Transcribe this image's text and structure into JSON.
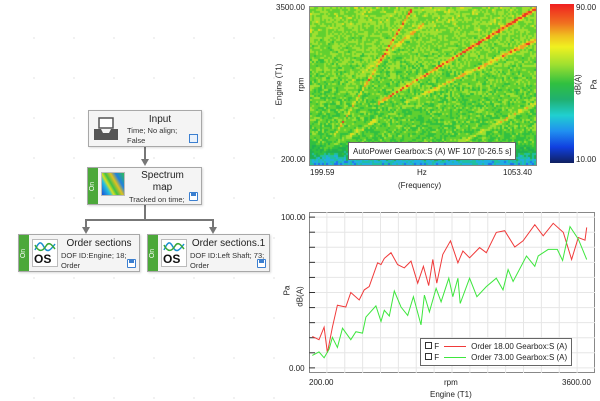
{
  "workflow": {
    "nodes": [
      {
        "title": "Input",
        "desc": [
          "Time; No align;",
          "False"
        ],
        "icon": "inbox-tray-icon"
      },
      {
        "title": "Spectrum map",
        "title_lines": [
          "Spectrum",
          "map"
        ],
        "desc": [
          "Tracked on time;"
        ],
        "status": "On",
        "icon": "spectrum-map-thumbnail-icon"
      },
      {
        "title": "Order sections",
        "desc": [
          "DOF ID:Engine; 18;",
          "Order"
        ],
        "status": "On",
        "icon": "order-sections-icon",
        "icon_text": "OS"
      },
      {
        "title": "Order sections.1",
        "desc": [
          "DOF ID:Left Shaft; 73;",
          "Order"
        ],
        "status": "On",
        "icon": "order-sections-icon",
        "icon_text": "OS"
      }
    ]
  },
  "spectrogram": {
    "chart_data": {
      "type": "heatmap",
      "title": "AutoPower Gearbox:S (A) WF 107 [0-26.5 s]",
      "xlabel": "Hz",
      "xlabel2": "(Frequency)",
      "ylabel": "Engine (T1)",
      "ylabel2": "rpm",
      "xlim": [
        199.59,
        1053.4
      ],
      "ylim": [
        200.0,
        3500.0
      ],
      "x_ticks": [
        "199.59",
        "1053.40"
      ],
      "y_ticks": [
        "3500.00",
        "200.00"
      ],
      "colorbar": {
        "min": "10.00",
        "max": "90.00",
        "unit": "dB(A)",
        "unit2": "Pa"
      }
    }
  },
  "orders": {
    "chart_data": {
      "type": "line",
      "xlabel": "rpm",
      "xlabel2": "Engine (T1)",
      "ylabel": "Pa",
      "ylabel2": "dB(A)",
      "xlim": [
        40,
        3800
      ],
      "ylim": [
        -3.4,
        103.4
      ],
      "x_ticks": [
        "200.00",
        "3600.00"
      ],
      "y_ticks": [
        "100.00",
        "0.00"
      ],
      "grid": true,
      "legend_placement": "bottom-right",
      "series": [
        {
          "name": "Order 18.00 Gearbox:S (A)",
          "flag": "F",
          "color": "#f03a3a",
          "x": [
            84,
            172,
            238,
            282,
            348,
            414,
            524,
            590,
            700,
            766,
            832,
            942,
            986,
            1030,
            1118,
            1205,
            1293,
            1381,
            1469,
            1544,
            1614,
            1667,
            1720,
            1799,
            1900,
            1997,
            2063,
            2151,
            2283,
            2371,
            2503,
            2613,
            2745,
            2855,
            3009,
            3119,
            3251,
            3383,
            3493,
            3581,
            3669,
            3691
          ],
          "y": [
            20.9,
            18.7,
            27,
            10,
            27,
            41.6,
            40.4,
            50,
            45,
            51.7,
            54,
            69.7,
            68.5,
            72.6,
            76.4,
            68.5,
            66.3,
            70.8,
            56.2,
            67.4,
            54.6,
            71.9,
            56.2,
            75.3,
            84.3,
            69.7,
            77.5,
            73,
            79.8,
            76.4,
            89.9,
            91,
            80.2,
            84.3,
            95,
            87.6,
            95.9,
            89.9,
            71.9,
            86.5,
            84.7,
            93.2
          ]
        },
        {
          "name": "Order 73.00 Gearbox:S (A)",
          "flag": "F",
          "color": "#3ee63e",
          "x": [
            84,
            172,
            238,
            304,
            348,
            414,
            480,
            590,
            656,
            744,
            788,
            920,
            986,
            1030,
            1096,
            1162,
            1250,
            1338,
            1412,
            1513,
            1557,
            1623,
            1711,
            1777,
            1878,
            1931,
            1997,
            2028,
            2151,
            2248,
            2371,
            2503,
            2591,
            2657,
            2723,
            2899,
            3009,
            3053,
            3185,
            3304,
            3374,
            3471,
            3581,
            3691
          ],
          "y": [
            8.3,
            10.6,
            6.7,
            12.4,
            20.2,
            13.5,
            26.3,
            18.7,
            24,
            23.1,
            33.7,
            41.1,
            30.8,
            38.2,
            34.4,
            51,
            40.4,
            34.8,
            47.2,
            28.5,
            48.3,
            37.1,
            52.8,
            43.8,
            59.5,
            47.2,
            59.5,
            42.7,
            59.5,
            47.2,
            53.9,
            59.5,
            51.7,
            65.2,
            57.3,
            74.2,
            67.4,
            74.2,
            78.6,
            78.6,
            71.2,
            93.7,
            85.4,
            71.9
          ]
        }
      ]
    }
  }
}
